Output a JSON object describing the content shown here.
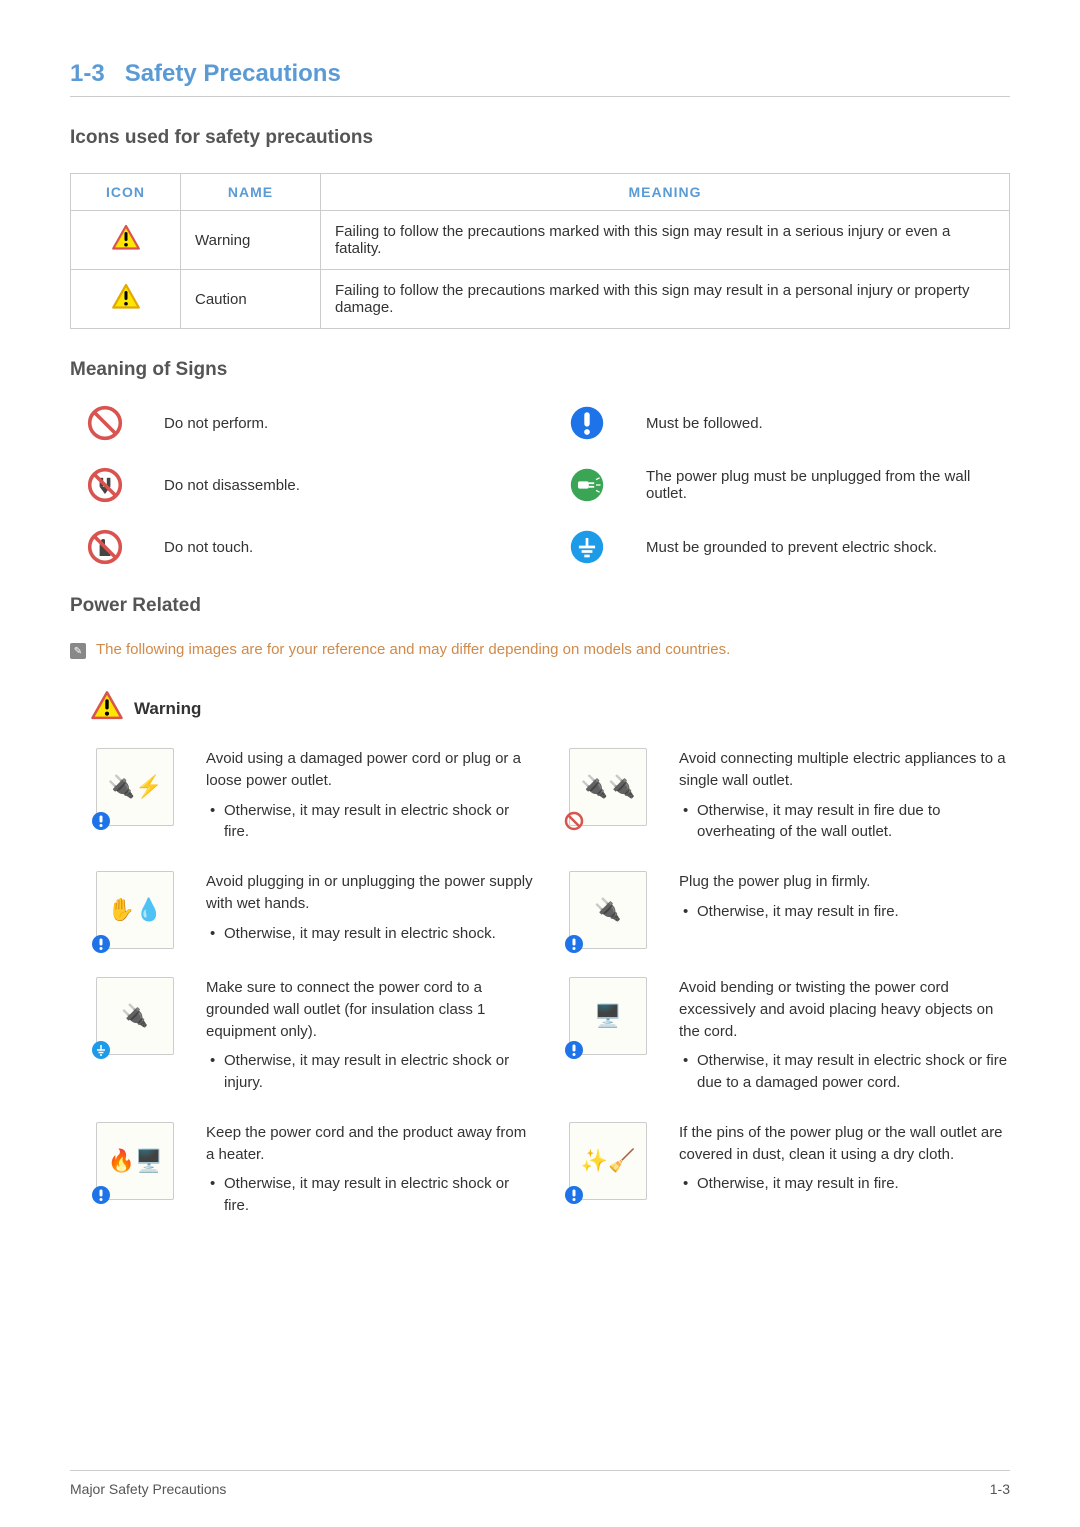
{
  "colors": {
    "headingBlue": "#5b9bd5",
    "borderGray": "#cccccc",
    "textGray": "#555555",
    "textDark": "#333333",
    "noteOrange": "#d08a4a",
    "warnTriangleStroke": "#d9534f",
    "warnFill": "#ffe600",
    "cautionTriangleStroke": "#e0a800",
    "prohibitRed": "#d9534f",
    "mustBlue": "#1e73e8",
    "plugGreen": "#3aa655",
    "groundBlue": "#1e9be8"
  },
  "title": "Safety Precautions",
  "sectionNumber": "1-3",
  "subsection1": "Icons used for safety precautions",
  "iconTable": {
    "headers": {
      "icon": "ICON",
      "name": "NAME",
      "meaning": "MEANING"
    },
    "rows": [
      {
        "name": "Warning",
        "meaning": "Failing to follow the precautions marked with this sign may result in a serious injury or even a fatality.",
        "iconType": "warning"
      },
      {
        "name": "Caution",
        "meaning": "Failing to follow the precautions marked with this sign may result in a personal injury or property damage.",
        "iconType": "caution"
      }
    ]
  },
  "subsection2": "Meaning of Signs",
  "signs": {
    "left": [
      {
        "text": "Do not perform.",
        "icon": "prohibit"
      },
      {
        "text": "Do not disassemble.",
        "icon": "no-disassemble"
      },
      {
        "text": "Do not touch.",
        "icon": "no-touch"
      }
    ],
    "right": [
      {
        "text": "Must be followed.",
        "icon": "must"
      },
      {
        "text": "The power plug must be unplugged from the wall outlet.",
        "icon": "unplug"
      },
      {
        "text": "Must be grounded to prevent electric shock.",
        "icon": "ground"
      }
    ]
  },
  "subsection3": "Power Related",
  "noteText": "The following images are for your reference and may differ depending on models and countries.",
  "warningLabel": "Warning",
  "precautions": {
    "left": [
      {
        "main": "Avoid using a damaged power cord or plug or a loose power outlet.",
        "bullet": "Otherwise, it may result in electric shock or fire.",
        "glyph": "🔌⚡",
        "badge": "must"
      },
      {
        "main": "Avoid plugging in or unplugging the power supply with wet hands.",
        "bullet": "Otherwise, it may result in electric shock.",
        "glyph": "✋💧",
        "badge": "must"
      },
      {
        "main": "Make sure to connect the power cord to a grounded wall outlet (for insulation class 1 equipment only).",
        "bullet": "Otherwise, it may result in electric shock or injury.",
        "glyph": "🔌",
        "badge": "ground"
      },
      {
        "main": "Keep the power cord and the product away from a heater.",
        "bullet": "Otherwise, it may result in electric shock or fire.",
        "glyph": "🔥🖥️",
        "badge": "must"
      }
    ],
    "right": [
      {
        "main": "Avoid connecting multiple electric appliances to a single wall outlet.",
        "bullet": "Otherwise, it may result in fire due to overheating of the wall outlet.",
        "glyph": "🔌🔌",
        "badge": "prohibit"
      },
      {
        "main": "Plug the power plug in firmly.",
        "bullet": "Otherwise, it may result in fire.",
        "glyph": "🔌",
        "badge": "must"
      },
      {
        "main": "Avoid bending or twisting the power cord excessively and avoid placing heavy objects on the cord.",
        "bullet": "Otherwise, it may result in electric shock or fire due to a damaged power cord.",
        "glyph": "🖥️",
        "badge": "must"
      },
      {
        "main": "If the pins of the power plug or the wall outlet are covered in dust, clean it using a dry cloth.",
        "bullet": "Otherwise, it may result in fire.",
        "glyph": "✨🧹",
        "badge": "must"
      }
    ]
  },
  "footer": {
    "left": "Major Safety Precautions",
    "right": "1-3"
  }
}
